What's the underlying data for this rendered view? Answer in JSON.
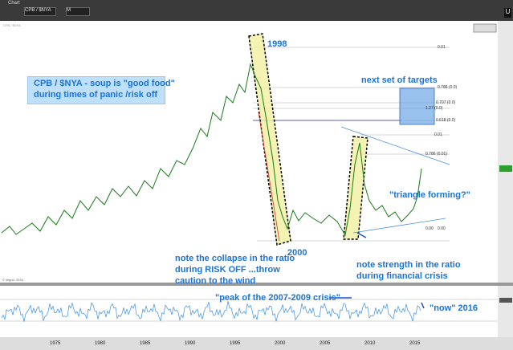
{
  "toolbar": {
    "app": "Chart",
    "symbol": "CPB / $NYA",
    "period": "M"
  },
  "annotations": {
    "peak_year": "1998",
    "low_year": "2000",
    "box": [
      "CPB / $NYA - soup is \"good food\"",
      "during times of panic /risk off"
    ],
    "targets": "next set of targets",
    "triangle": "\"triangle forming?\"",
    "collapse": [
      "note the collapse in the ratio",
      "during RISK OFF ...throw",
      "caution to the wind"
    ],
    "strength": [
      "note strength in the ratio",
      "during financial crisis"
    ],
    "peak_crisis": "\"peak of the 2007-2009 crisis\"",
    "now": "\"now\" 2016"
  },
  "fib_labels": [
    "0.01",
    "0.786 (0.0)",
    "0.707 (0.0)",
    "1.27 (0.0)",
    "0.618 (0.0)",
    "0.01",
    "0.786 (0.01)",
    "0.00",
    "0.00"
  ],
  "x_axis": [
    "1975",
    "1980",
    "1985",
    "1990",
    "1995",
    "2000",
    "2005",
    "2010",
    "2015"
  ],
  "copyright": "© stlgrid, 2016"
}
